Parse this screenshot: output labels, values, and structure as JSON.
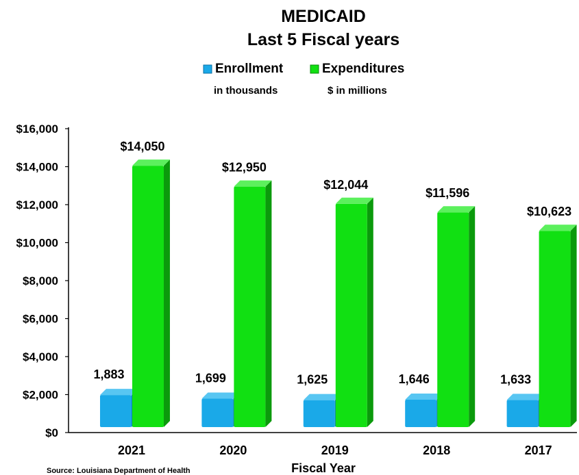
{
  "chart_data": {
    "type": "bar",
    "title": "MEDICAID",
    "subtitle": "Last 5 Fiscal years",
    "categories": [
      "2021",
      "2020",
      "2019",
      "2018",
      "2017"
    ],
    "series": [
      {
        "name": "Enrollment",
        "sublabel": "in thousands",
        "color": "#1aa9e8",
        "values": [
          1883,
          1699,
          1625,
          1646,
          1633
        ],
        "labels": [
          "1,883",
          "1,699",
          "1,625",
          "1,646",
          "1,633"
        ]
      },
      {
        "name": "Expenditures",
        "sublabel": "$ in millions",
        "color": "#11e012",
        "values": [
          14050,
          12950,
          12044,
          11596,
          10623
        ],
        "labels": [
          "$14,050",
          "$12,950",
          "$12,044",
          "$11,596",
          "$10,623"
        ]
      }
    ],
    "y_ticks": [
      "$0",
      "$2,000",
      "$4,000",
      "$6,000",
      "$8,000",
      "$10,000",
      "$12,000",
      "$14,000",
      "$16,000"
    ],
    "ylim": [
      0,
      16000
    ],
    "xlabel": "Fiscal Year",
    "ylabel": "",
    "legend_position": "top-center",
    "grid": false,
    "source": "Source: Louisiana Department of Health"
  }
}
